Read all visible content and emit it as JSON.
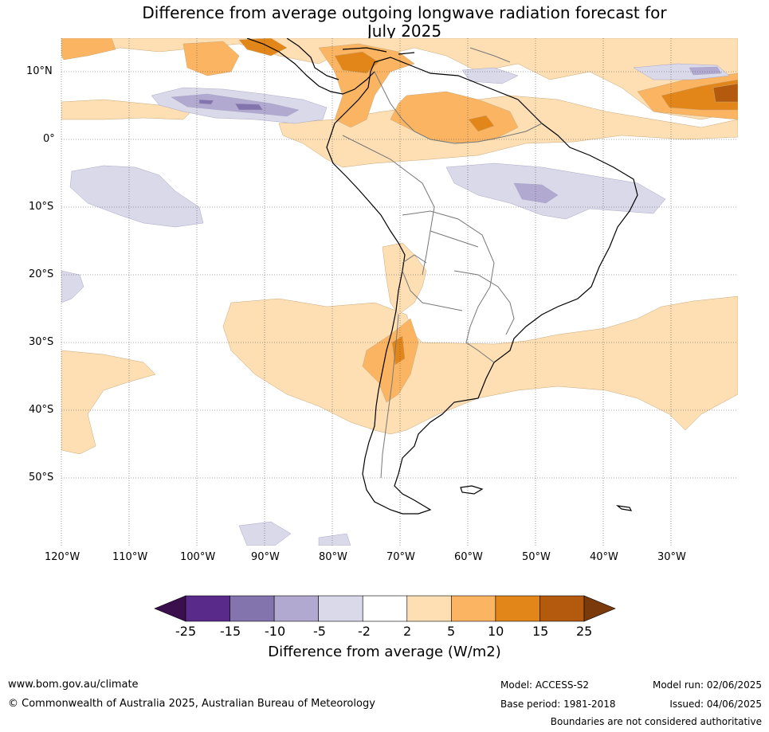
{
  "title": {
    "line1": "Difference from average outgoing longwave radiation forecast for",
    "line2": "July 2025"
  },
  "map": {
    "lat_labels": [
      "10°N",
      "0°",
      "10°S",
      "20°S",
      "30°S",
      "40°S",
      "50°S"
    ],
    "lon_labels": [
      "120°W",
      "110°W",
      "100°W",
      "90°W",
      "80°W",
      "70°W",
      "60°W",
      "50°W",
      "40°W",
      "30°W"
    ]
  },
  "colorbar": {
    "ticks": [
      "-25",
      "-15",
      "-10",
      "-5",
      "-2",
      "2",
      "5",
      "10",
      "15",
      "25"
    ],
    "label": "Difference from average (W/m2)",
    "colors": [
      "#3b0f4e",
      "#5a2a8a",
      "#8474ae",
      "#b1a9d0",
      "#d9d9ea",
      "#ffffff",
      "#fddfb3",
      "#fbb562",
      "#e2861a",
      "#b45a0f",
      "#7a3a0c"
    ]
  },
  "footer": {
    "website": "www.bom.gov.au/climate",
    "copyright": "© Commonwealth of Australia 2025, Australian Bureau of Meteorology",
    "model": "Model: ACCESS-S2",
    "base_period": "Base period: 1981-2018",
    "model_run": "Model run: 02/06/2025",
    "issued": "Issued: 04/06/2025",
    "disclaimer": "Boundaries are not considered authoritative"
  }
}
